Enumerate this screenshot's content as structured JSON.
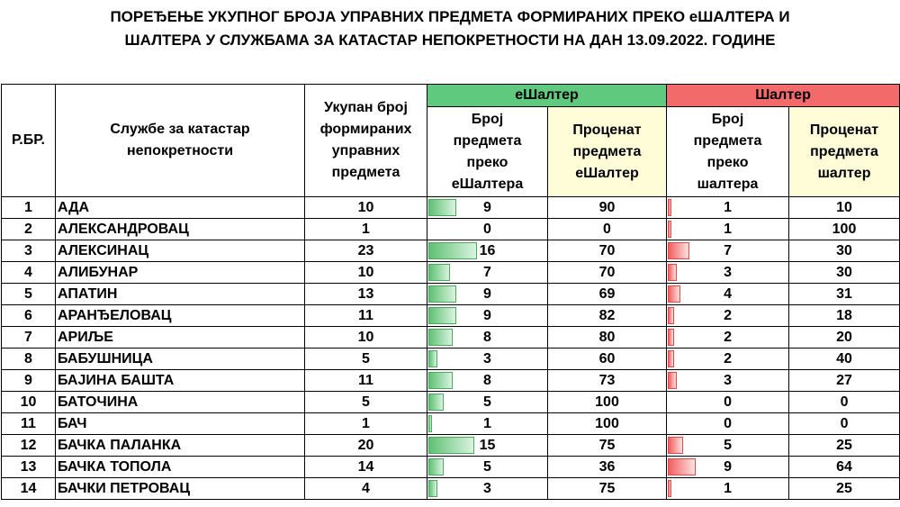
{
  "title_line1": "ПОРЕЂЕЊЕ УКУПНОГ БРОЈА УПРАВНИХ ПРЕДМЕТА ФОРМИРАНИХ ПРЕКО еШАЛТЕРА И",
  "title_line2": "ШАЛТЕРА У СЛУЖБАМА ЗА КАТАСТАР НЕПОКРЕТНОСТИ НА ДАН 13.09.2022. ГОДИНЕ",
  "headers": {
    "rb": "Р.БР.",
    "office": "Службе за катастар непокретности",
    "total": "Укупан број формираних управних предмета",
    "eshalter_group": "еШалтер",
    "e_count": "Број предмета преко еШалтера",
    "e_pct": "Проценат предмета еШалтер",
    "shalter_group": "Шалтер",
    "s_count": "Број предмета преко шалтера",
    "s_pct": "Проценат предмета шалтер"
  },
  "colors": {
    "eshalter_header": "#5fca7e",
    "shalter_header": "#f36a6a",
    "pct_header_bg": "#fffdd8"
  },
  "bar_scale_max": 23,
  "rows": [
    {
      "rb": "1",
      "name": "АДА",
      "total": "10",
      "e": "9",
      "ep": "90",
      "s": "1",
      "sp": "10"
    },
    {
      "rb": "2",
      "name": "АЛЕКСАНДРОВАЦ",
      "total": "1",
      "e": "0",
      "ep": "0",
      "s": "1",
      "sp": "100"
    },
    {
      "rb": "3",
      "name": "АЛЕКСИНАЦ",
      "total": "23",
      "e": "16",
      "ep": "70",
      "s": "7",
      "sp": "30"
    },
    {
      "rb": "4",
      "name": "АЛИБУНАР",
      "total": "10",
      "e": "7",
      "ep": "70",
      "s": "3",
      "sp": "30"
    },
    {
      "rb": "5",
      "name": "АПАТИН",
      "total": "13",
      "e": "9",
      "ep": "69",
      "s": "4",
      "sp": "31"
    },
    {
      "rb": "6",
      "name": "АРАНЂЕЛОВАЦ",
      "total": "11",
      "e": "9",
      "ep": "82",
      "s": "2",
      "sp": "18"
    },
    {
      "rb": "7",
      "name": "АРИЉЕ",
      "total": "10",
      "e": "8",
      "ep": "80",
      "s": "2",
      "sp": "20"
    },
    {
      "rb": "8",
      "name": "БАБУШНИЦА",
      "total": "5",
      "e": "3",
      "ep": "60",
      "s": "2",
      "sp": "40"
    },
    {
      "rb": "9",
      "name": "БАЈИНА БАШТА",
      "total": "11",
      "e": "8",
      "ep": "73",
      "s": "3",
      "sp": "27"
    },
    {
      "rb": "10",
      "name": "БАТОЧИНА",
      "total": "5",
      "e": "5",
      "ep": "100",
      "s": "0",
      "sp": "0"
    },
    {
      "rb": "11",
      "name": "БАЧ",
      "total": "1",
      "e": "1",
      "ep": "100",
      "s": "0",
      "sp": "0"
    },
    {
      "rb": "12",
      "name": "БАЧКА ПАЛАНКА",
      "total": "20",
      "e": "15",
      "ep": "75",
      "s": "5",
      "sp": "25"
    },
    {
      "rb": "13",
      "name": "БАЧКА ТОПОЛА",
      "total": "14",
      "e": "5",
      "ep": "36",
      "s": "9",
      "sp": "64"
    },
    {
      "rb": "14",
      "name": "БАЧКИ ПЕТРОВАЦ",
      "total": "4",
      "e": "3",
      "ep": "75",
      "s": "1",
      "sp": "25"
    }
  ]
}
